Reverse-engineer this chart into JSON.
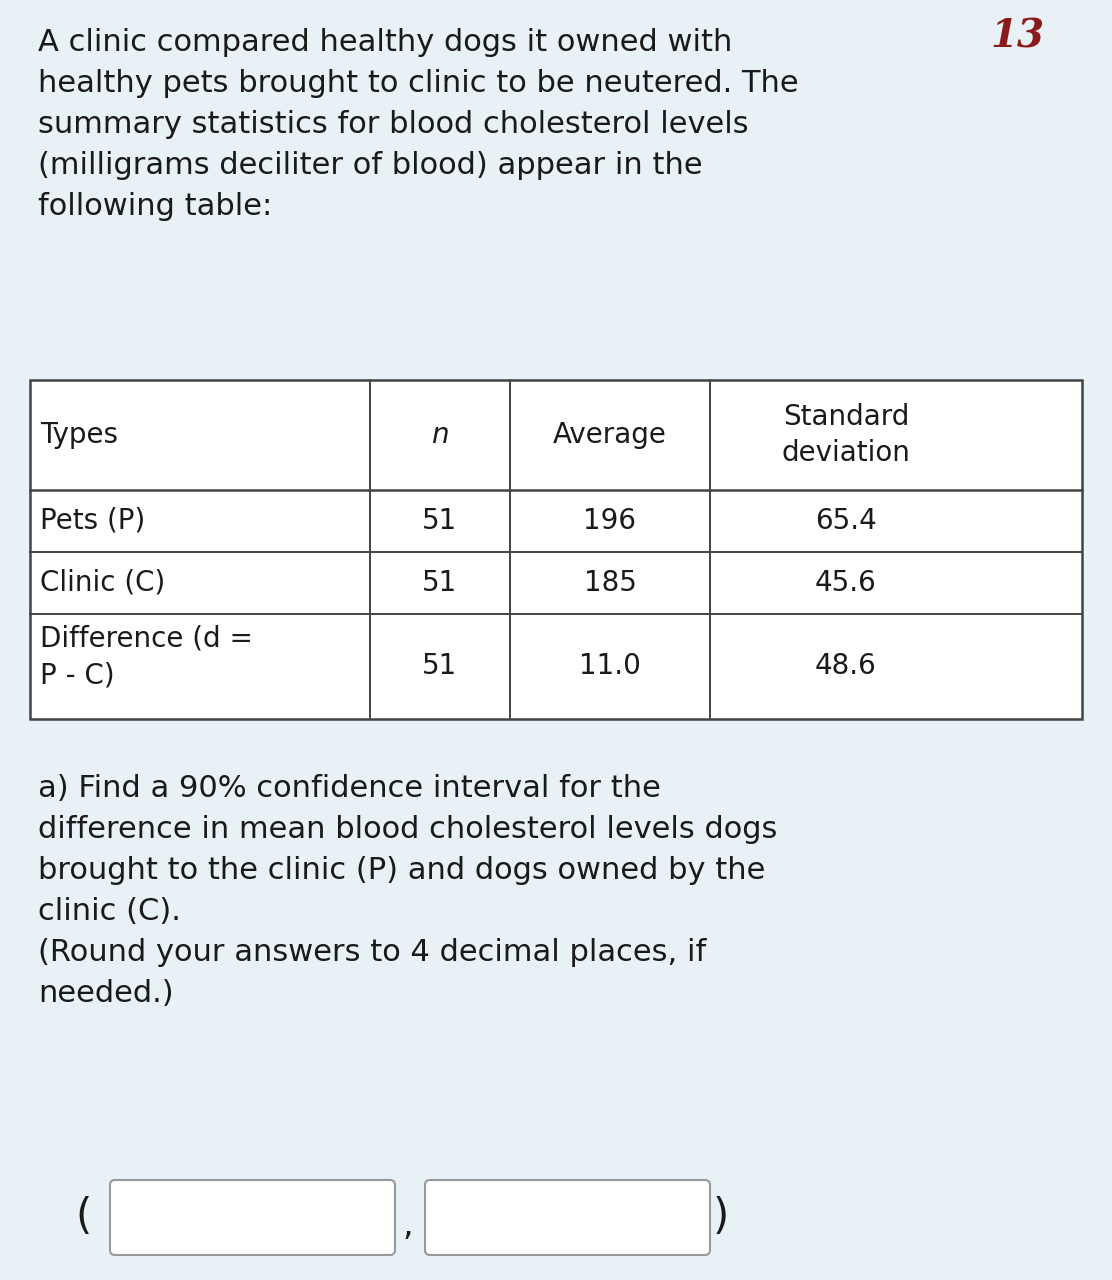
{
  "background_color": "#e8f1f5",
  "intro_text": "A clinic compared healthy dogs it owned with\nhealthy pets brought to clinic to be neutered. The\nsummary statistics for blood cholesterol levels\n(milligrams deciliter of blood) appear in the\nfollowing table:",
  "table_headers": [
    "Types",
    "n",
    "Average",
    "Standard\ndeviation"
  ],
  "table_rows": [
    [
      "Pets (P)",
      "51",
      "196",
      "65.4"
    ],
    [
      "Clinic (C)",
      "51",
      "185",
      "45.6"
    ],
    [
      "Difference (d =\nP - C)",
      "51",
      "11.0",
      "48.6"
    ]
  ],
  "question_text": "a) Find a 90% confidence interval for the\ndifference in mean blood cholesterol levels dogs\nbrought to the clinic (P) and dogs owned by the\nclinic (C).\n(Round your answers to 4 decimal places, if\nneeded.)",
  "annotation_text": "13",
  "annotation_color": "#8b1a1a",
  "font_size_intro": 22,
  "font_size_table": 20,
  "font_size_question": 22,
  "font_size_annotation": 28,
  "text_color": "#1a1a1a",
  "table_border_color": "#444444",
  "input_box_color": "#ffffff",
  "input_box_border": "#999999",
  "n_italic": "n"
}
